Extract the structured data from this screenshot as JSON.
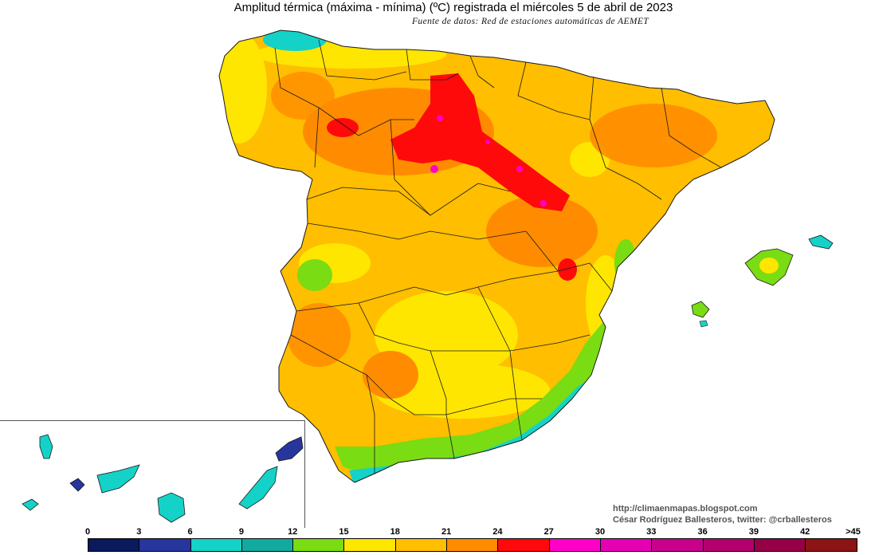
{
  "title": "Amplitud térmica (máxima - mínima) (ºC) registrada el miércoles 5 de abril de 2023",
  "subtitle": "Fuente de datos: Red de estaciones automáticas de AEMET",
  "credits": {
    "url": "http://climaenmapas.blogspot.com",
    "author": "César Rodríguez Ballesteros, twitter: @crballesteros"
  },
  "legend": {
    "ticks": [
      "0",
      "3",
      "6",
      "9",
      "12",
      "15",
      "18",
      "21",
      "24",
      "27",
      "30",
      "33",
      "36",
      "39",
      "42",
      ">45"
    ],
    "colors": [
      "#0a1a5c",
      "#26369c",
      "#14d2c8",
      "#12aaa0",
      "#7adc12",
      "#ffe600",
      "#ffbe00",
      "#ff8c00",
      "#ff0a0a",
      "#ff00c8",
      "#e600b4",
      "#c8008c",
      "#b4006e",
      "#960046",
      "#8c1414"
    ]
  },
  "colors": {
    "sea": "#ffffff",
    "border": "#1a1a1a"
  }
}
